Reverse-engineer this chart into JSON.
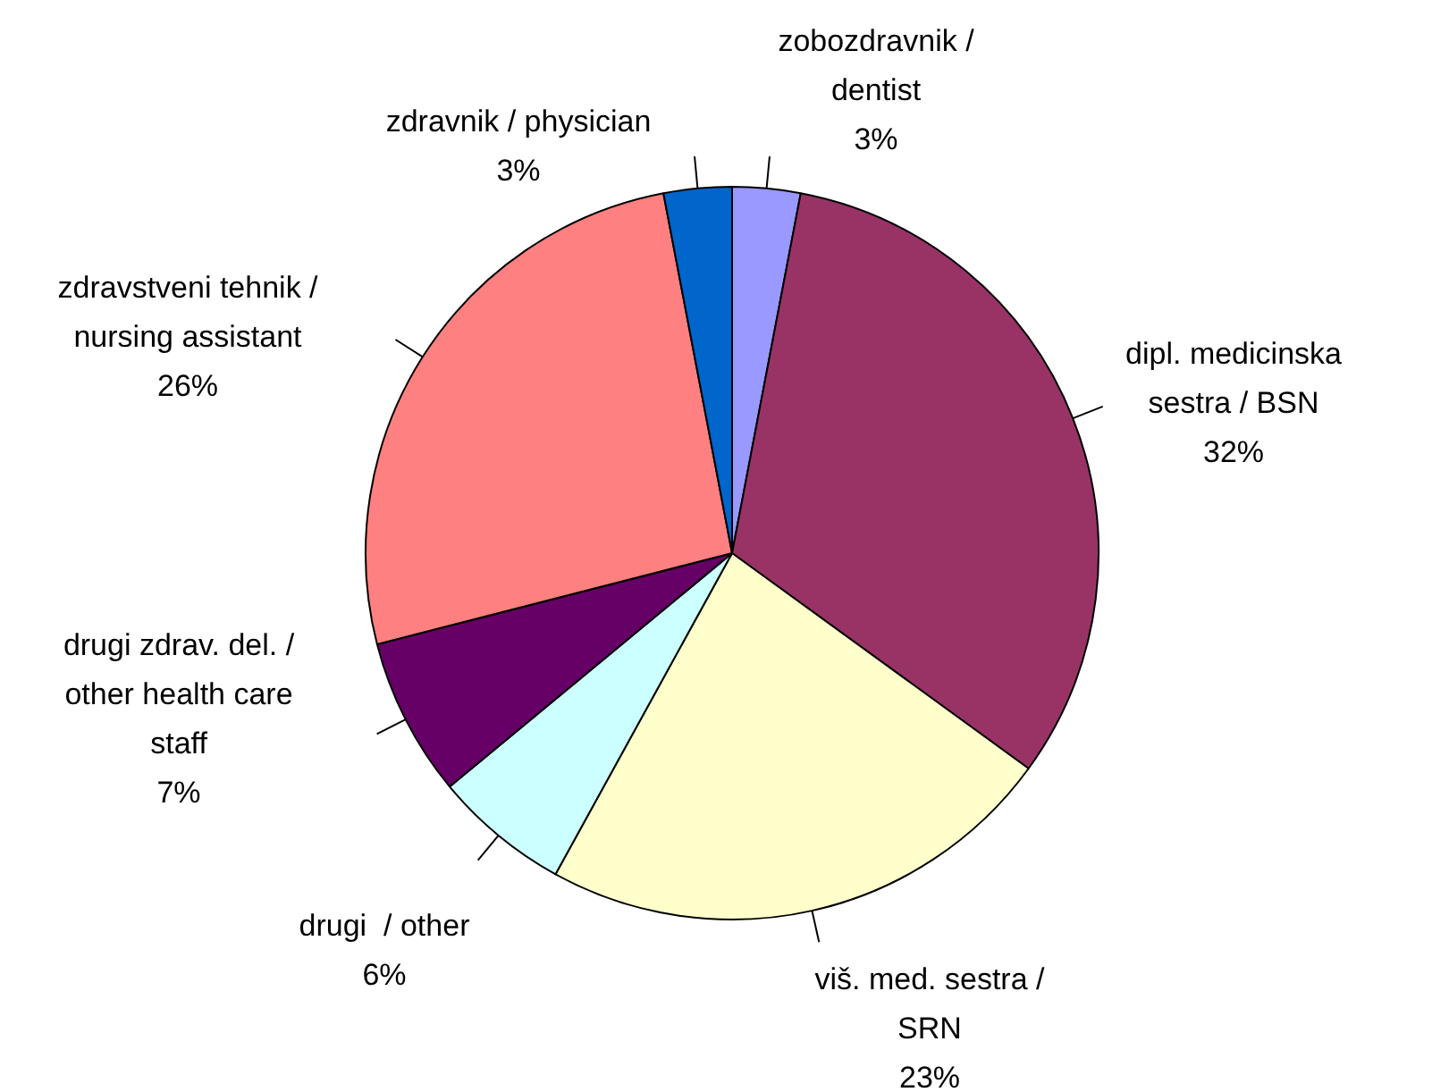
{
  "chart_data": {
    "type": "pie",
    "categories": [
      "zobozdravnik /\ndentist",
      "dipl. medicinska\nsestra / BSN",
      "viš. med. sestra /\nSRN",
      "drugi  / other",
      "drugi zdrav. del. /\nother health care\nstaff",
      "zdravstveni tehnik /\nnursing assistant",
      "zdravnik / physician"
    ],
    "values": [
      3,
      32,
      23,
      6,
      7,
      26,
      3
    ],
    "value_labels": [
      "3%",
      "32%",
      "23%",
      "6%",
      "7%",
      "26%",
      "3%"
    ],
    "colors": [
      "#9999ff",
      "#993366",
      "#ffffcc",
      "#ccffff",
      "#660066",
      "#ff8080",
      "#0066cc"
    ],
    "legend": false
  }
}
